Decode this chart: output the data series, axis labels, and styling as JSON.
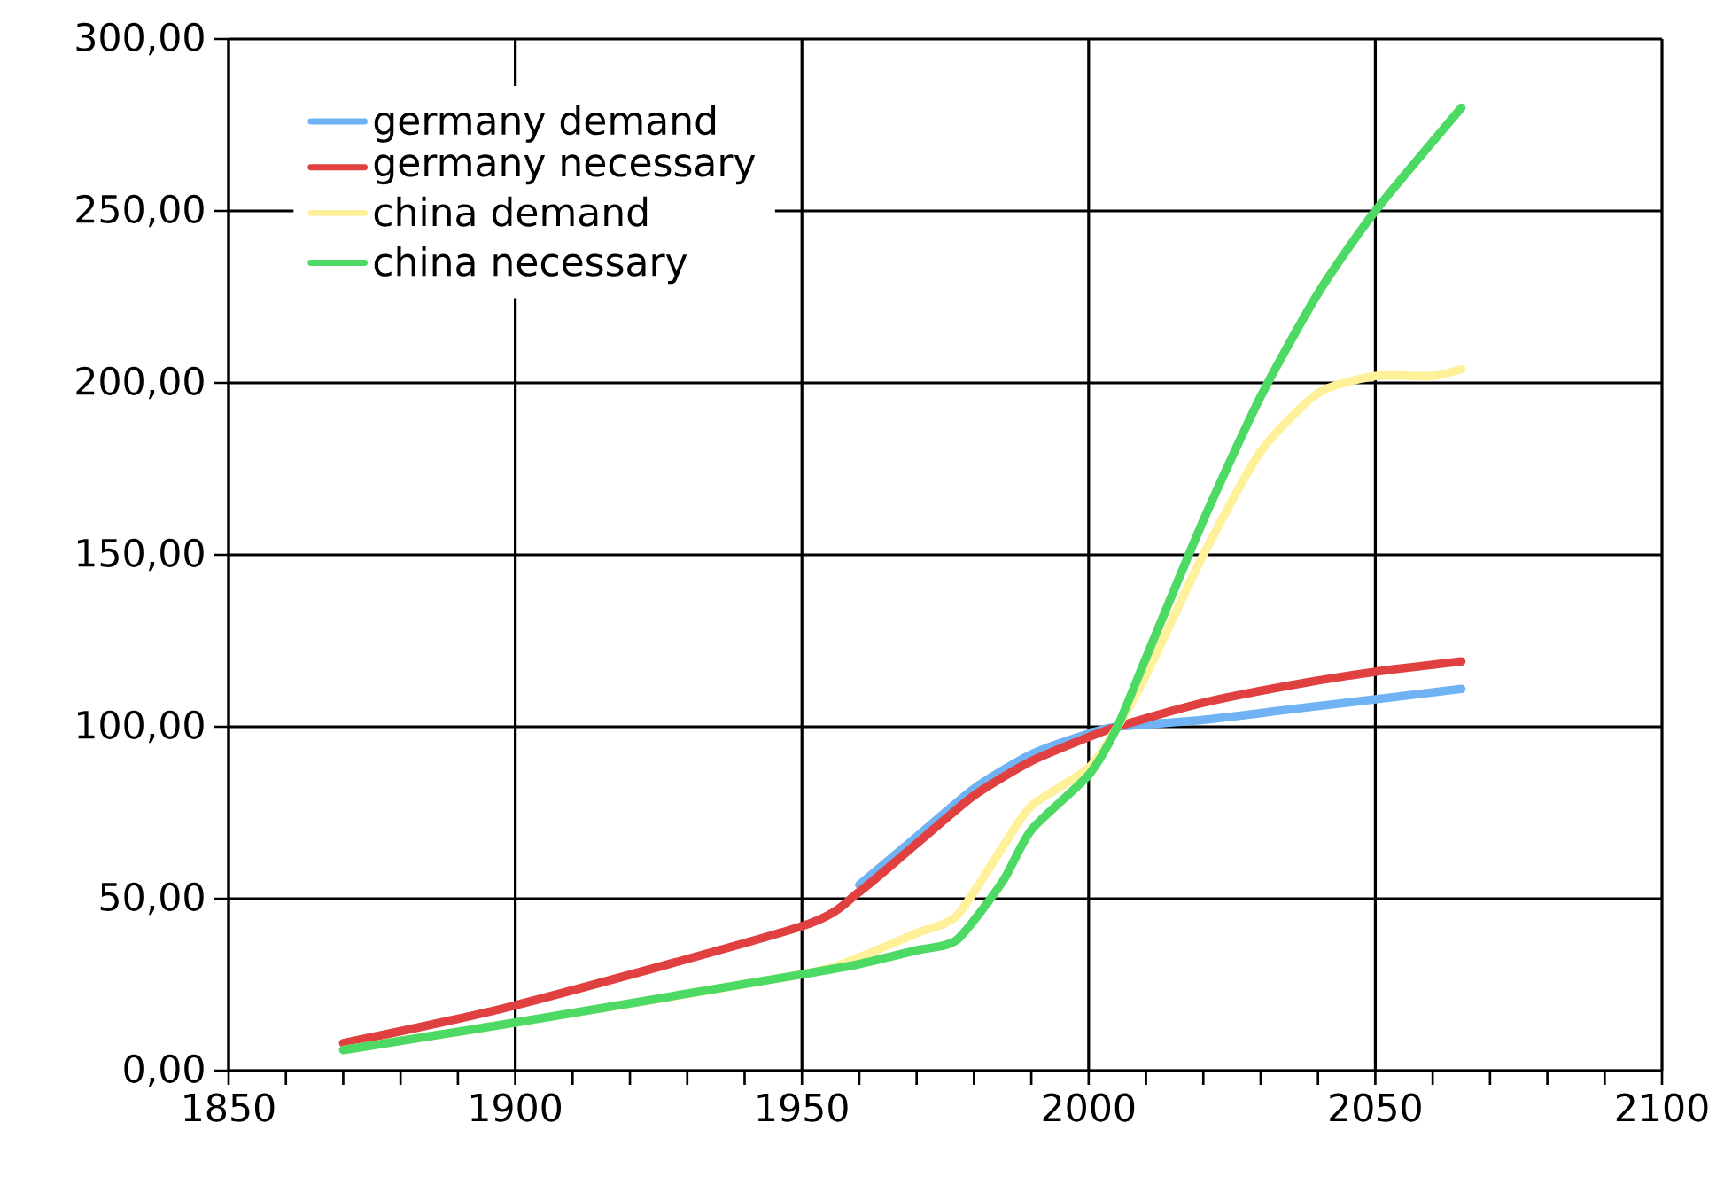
{
  "chart_data": {
    "type": "line",
    "xlim": [
      1850,
      2100
    ],
    "ylim": [
      0,
      300
    ],
    "xticks": [
      1850,
      {
        "value": 1860,
        "label": null
      },
      {
        "value": 1870,
        "label": null
      },
      {
        "value": 1880,
        "label": null
      },
      {
        "value": 1890,
        "label": null
      },
      1900,
      {
        "value": 1910,
        "label": null
      },
      {
        "value": 1920,
        "label": null
      },
      {
        "value": 1930,
        "label": null
      },
      {
        "value": 1940,
        "label": null
      },
      1950,
      {
        "value": 1960,
        "label": null
      },
      {
        "value": 1970,
        "label": null
      },
      {
        "value": 1980,
        "label": null
      },
      {
        "value": 1990,
        "label": null
      },
      2000,
      {
        "value": 2010,
        "label": null
      },
      {
        "value": 2020,
        "label": null
      },
      {
        "value": 2030,
        "label": null
      },
      {
        "value": 2040,
        "label": null
      },
      2050,
      {
        "value": 2060,
        "label": null
      },
      {
        "value": 2070,
        "label": null
      },
      {
        "value": 2080,
        "label": null
      },
      {
        "value": 2090,
        "label": null
      },
      2100
    ],
    "yticks": [
      {
        "value": 0,
        "label": "0,00"
      },
      {
        "value": 50,
        "label": "50,00"
      },
      {
        "value": 100,
        "label": "100,00"
      },
      {
        "value": 150,
        "label": "150,00"
      },
      {
        "value": 200,
        "label": "200,00"
      },
      {
        "value": 250,
        "label": "250,00"
      },
      {
        "value": 300,
        "label": "300,00"
      }
    ],
    "grid": true,
    "legend": "top left",
    "marker": "none",
    "line_style": "solid",
    "series": [
      {
        "name": "germany demand",
        "color": "#6fb3f5",
        "x": [
          1960,
          1970,
          1980,
          1990,
          2000,
          2005,
          2020,
          2035,
          2050,
          2065
        ],
        "values": [
          54,
          68,
          82,
          92,
          98,
          100,
          102,
          105,
          108,
          111
        ]
      },
      {
        "name": "germany necessary",
        "color": "#e04040",
        "x": [
          1870,
          1900,
          1950,
          1960,
          1970,
          1980,
          1990,
          2000,
          2005,
          2020,
          2035,
          2050,
          2065
        ],
        "values": [
          8,
          19,
          42,
          52,
          66,
          80,
          90,
          97,
          100,
          107,
          112,
          116,
          119
        ]
      },
      {
        "name": "china demand",
        "color": "#fff09a",
        "x": [
          1870,
          1900,
          1950,
          1960,
          1970,
          1977,
          1985,
          1990,
          2000,
          2005,
          2010,
          2020,
          2030,
          2040,
          2050,
          2060,
          2065
        ],
        "values": [
          6,
          14,
          28,
          33,
          40,
          45,
          65,
          77,
          88,
          100,
          115,
          150,
          180,
          197,
          202,
          202,
          204
        ]
      },
      {
        "name": "china necessary",
        "color": "#4cd964",
        "x": [
          1870,
          1900,
          1950,
          1960,
          1970,
          1977,
          1985,
          1990,
          2000,
          2005,
          2010,
          2020,
          2030,
          2040,
          2050,
          2065
        ],
        "values": [
          6,
          14,
          28,
          31,
          35,
          38,
          55,
          70,
          86,
          100,
          120,
          160,
          196,
          226,
          250,
          280
        ]
      }
    ]
  }
}
